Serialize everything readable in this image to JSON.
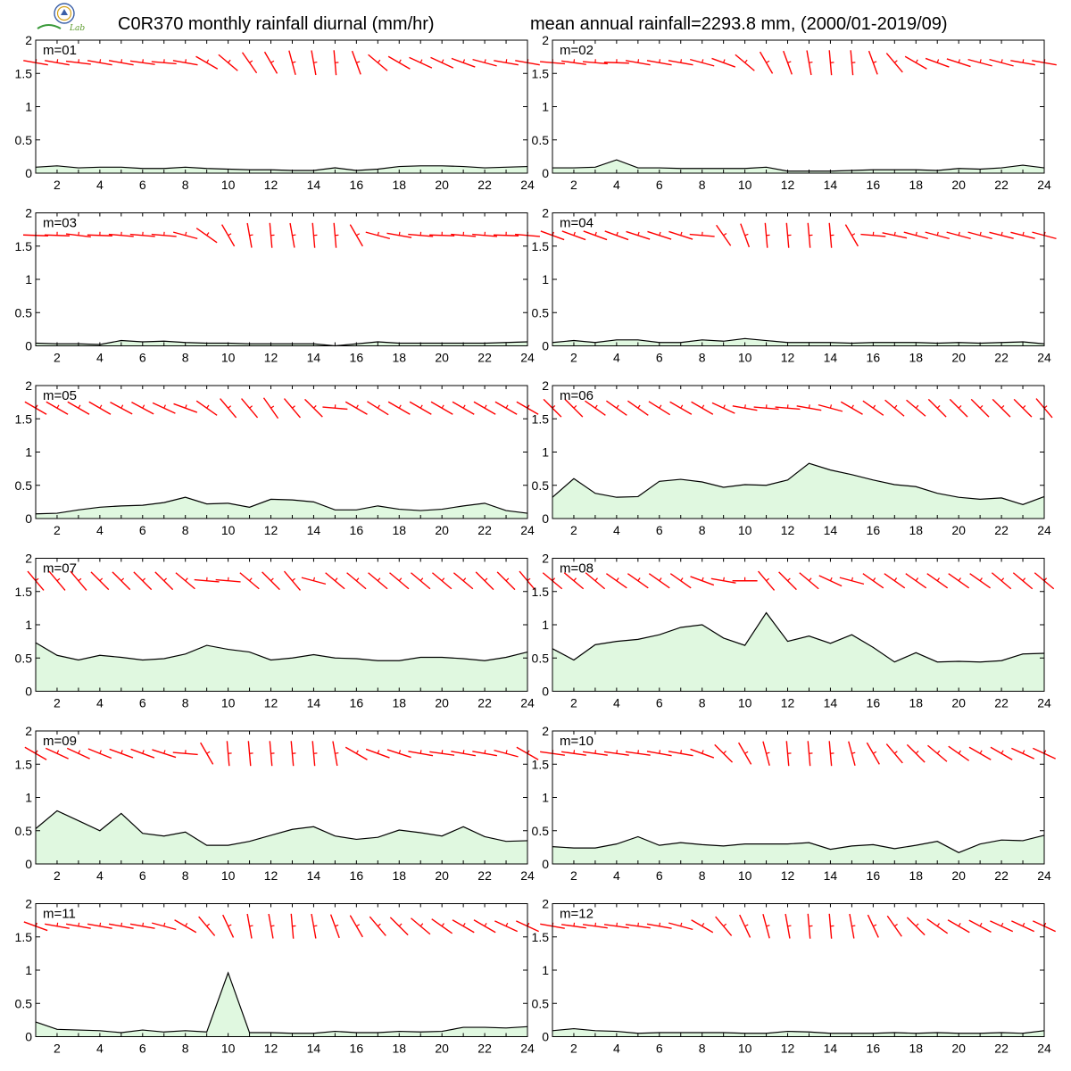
{
  "header": {
    "title_left": "C0R370 monthly rainfall diurnal (mm/hr)",
    "title_right": "mean annual rainfall=2293.8 mm, (2000/01-2019/09)",
    "logo_text": "Lab"
  },
  "colors": {
    "fill": "#e0f8e0",
    "line": "#000000",
    "barb": "#ff0000",
    "frame": "#000000"
  },
  "chart_data": [
    {
      "type": "area",
      "panel_label": "m=01",
      "x": [
        1,
        2,
        3,
        4,
        5,
        6,
        7,
        8,
        9,
        10,
        11,
        12,
        13,
        14,
        15,
        16,
        17,
        18,
        19,
        20,
        21,
        22,
        23,
        24
      ],
      "values": [
        0.09,
        0.11,
        0.08,
        0.09,
        0.09,
        0.07,
        0.07,
        0.09,
        0.07,
        0.06,
        0.05,
        0.05,
        0.04,
        0.04,
        0.08,
        0.04,
        0.06,
        0.1,
        0.11,
        0.11,
        0.1,
        0.08,
        0.09,
        0.1
      ],
      "wind_dir_deg": [
        80,
        80,
        83,
        80,
        80,
        82,
        85,
        80,
        60,
        50,
        35,
        30,
        15,
        10,
        5,
        20,
        50,
        60,
        65,
        65,
        70,
        75,
        80,
        80
      ],
      "xlim": [
        1,
        24
      ],
      "ylim": [
        0,
        2
      ],
      "xticks": [
        2,
        4,
        6,
        8,
        10,
        12,
        14,
        16,
        18,
        20,
        22,
        24
      ],
      "yticks": [
        0,
        0.5,
        1,
        1.5,
        2
      ]
    },
    {
      "type": "area",
      "panel_label": "m=02",
      "x": [
        1,
        2,
        3,
        4,
        5,
        6,
        7,
        8,
        9,
        10,
        11,
        12,
        13,
        14,
        15,
        16,
        17,
        18,
        19,
        20,
        21,
        22,
        23,
        24
      ],
      "values": [
        0.08,
        0.08,
        0.09,
        0.2,
        0.08,
        0.08,
        0.07,
        0.07,
        0.07,
        0.07,
        0.09,
        0.03,
        0.03,
        0.03,
        0.04,
        0.05,
        0.05,
        0.05,
        0.04,
        0.07,
        0.06,
        0.08,
        0.12,
        0.08
      ],
      "wind_dir_deg": [
        85,
        82,
        85,
        88,
        80,
        80,
        80,
        75,
        70,
        50,
        30,
        20,
        10,
        5,
        5,
        20,
        40,
        60,
        70,
        72,
        75,
        75,
        80,
        80
      ],
      "xlim": [
        1,
        24
      ],
      "ylim": [
        0,
        2
      ],
      "xticks": [
        2,
        4,
        6,
        8,
        10,
        12,
        14,
        16,
        18,
        20,
        22,
        24
      ],
      "yticks": [
        0,
        0.5,
        1,
        1.5,
        2
      ]
    },
    {
      "type": "area",
      "panel_label": "m=03",
      "x": [
        1,
        2,
        3,
        4,
        5,
        6,
        7,
        8,
        9,
        10,
        11,
        12,
        13,
        14,
        15,
        16,
        17,
        18,
        19,
        20,
        21,
        22,
        23,
        24
      ],
      "values": [
        0.04,
        0.03,
        0.03,
        0.02,
        0.08,
        0.06,
        0.07,
        0.05,
        0.04,
        0.04,
        0.03,
        0.03,
        0.03,
        0.03,
        0.0,
        0.03,
        0.06,
        0.04,
        0.04,
        0.04,
        0.04,
        0.04,
        0.05,
        0.06
      ],
      "wind_dir_deg": [
        88,
        88,
        83,
        88,
        85,
        85,
        85,
        75,
        55,
        30,
        10,
        5,
        10,
        5,
        5,
        30,
        75,
        80,
        85,
        88,
        85,
        85,
        88,
        85
      ],
      "xlim": [
        1,
        24
      ],
      "ylim": [
        0,
        2
      ],
      "xticks": [
        2,
        4,
        6,
        8,
        10,
        12,
        14,
        16,
        18,
        20,
        22,
        24
      ],
      "yticks": [
        0,
        0.5,
        1,
        1.5,
        2
      ]
    },
    {
      "type": "area",
      "panel_label": "m=04",
      "x": [
        1,
        2,
        3,
        4,
        5,
        6,
        7,
        8,
        9,
        10,
        11,
        12,
        13,
        14,
        15,
        16,
        17,
        18,
        19,
        20,
        21,
        22,
        23,
        24
      ],
      "values": [
        0.05,
        0.08,
        0.05,
        0.09,
        0.09,
        0.05,
        0.05,
        0.09,
        0.07,
        0.11,
        0.08,
        0.05,
        0.05,
        0.05,
        0.04,
        0.05,
        0.05,
        0.05,
        0.04,
        0.05,
        0.04,
        0.05,
        0.06,
        0.03
      ],
      "wind_dir_deg": [
        70,
        70,
        70,
        70,
        72,
        72,
        72,
        85,
        35,
        20,
        5,
        5,
        5,
        5,
        30,
        85,
        78,
        75,
        75,
        75,
        75,
        76,
        76,
        75
      ],
      "xlim": [
        1,
        24
      ],
      "ylim": [
        0,
        2
      ],
      "xticks": [
        2,
        4,
        6,
        8,
        10,
        12,
        14,
        16,
        18,
        20,
        22,
        24
      ],
      "yticks": [
        0,
        0.5,
        1,
        1.5,
        2
      ]
    },
    {
      "type": "area",
      "panel_label": "m=05",
      "x": [
        1,
        2,
        3,
        4,
        5,
        6,
        7,
        8,
        9,
        10,
        11,
        12,
        13,
        14,
        15,
        16,
        17,
        18,
        19,
        20,
        21,
        22,
        23,
        24
      ],
      "values": [
        0.07,
        0.08,
        0.13,
        0.17,
        0.19,
        0.2,
        0.24,
        0.32,
        0.22,
        0.23,
        0.17,
        0.29,
        0.28,
        0.25,
        0.13,
        0.13,
        0.19,
        0.14,
        0.12,
        0.14,
        0.19,
        0.23,
        0.12,
        0.08
      ],
      "wind_dir_deg": [
        60,
        60,
        60,
        60,
        62,
        62,
        65,
        70,
        55,
        40,
        40,
        35,
        40,
        45,
        85,
        60,
        58,
        60,
        60,
        60,
        60,
        60,
        60,
        60
      ],
      "xlim": [
        1,
        24
      ],
      "ylim": [
        0,
        2
      ],
      "xticks": [
        2,
        4,
        6,
        8,
        10,
        12,
        14,
        16,
        18,
        20,
        22,
        24
      ],
      "yticks": [
        0,
        0.5,
        1,
        1.5,
        2
      ]
    },
    {
      "type": "area",
      "panel_label": "m=06",
      "x": [
        1,
        2,
        3,
        4,
        5,
        6,
        7,
        8,
        9,
        10,
        11,
        12,
        13,
        14,
        15,
        16,
        17,
        18,
        19,
        20,
        21,
        22,
        23,
        24
      ],
      "values": [
        0.32,
        0.6,
        0.38,
        0.32,
        0.33,
        0.56,
        0.59,
        0.55,
        0.47,
        0.51,
        0.5,
        0.58,
        0.83,
        0.73,
        0.66,
        0.58,
        0.51,
        0.48,
        0.38,
        0.32,
        0.29,
        0.31,
        0.21,
        0.33
      ],
      "wind_dir_deg": [
        45,
        45,
        55,
        55,
        55,
        58,
        60,
        60,
        65,
        80,
        85,
        85,
        80,
        75,
        60,
        55,
        50,
        50,
        45,
        45,
        45,
        45,
        45,
        40
      ],
      "xlim": [
        1,
        24
      ],
      "ylim": [
        0,
        2
      ],
      "xticks": [
        2,
        4,
        6,
        8,
        10,
        12,
        14,
        16,
        18,
        20,
        22,
        24
      ],
      "yticks": [
        0,
        0.5,
        1,
        1.5,
        2
      ]
    },
    {
      "type": "area",
      "panel_label": "m=07",
      "x": [
        1,
        2,
        3,
        4,
        5,
        6,
        7,
        8,
        9,
        10,
        11,
        12,
        13,
        14,
        15,
        16,
        17,
        18,
        19,
        20,
        21,
        22,
        23,
        24
      ],
      "values": [
        0.73,
        0.54,
        0.47,
        0.54,
        0.51,
        0.47,
        0.49,
        0.56,
        0.69,
        0.63,
        0.59,
        0.47,
        0.5,
        0.55,
        0.5,
        0.49,
        0.46,
        0.46,
        0.51,
        0.51,
        0.49,
        0.46,
        0.51,
        0.59
      ],
      "wind_dir_deg": [
        40,
        40,
        40,
        45,
        45,
        45,
        45,
        50,
        85,
        85,
        50,
        45,
        40,
        75,
        50,
        50,
        50,
        50,
        50,
        50,
        50,
        45,
        45,
        40
      ],
      "xlim": [
        1,
        24
      ],
      "ylim": [
        0,
        2
      ],
      "xticks": [
        2,
        4,
        6,
        8,
        10,
        12,
        14,
        16,
        18,
        20,
        22,
        24
      ],
      "yticks": [
        0,
        0.5,
        1,
        1.5,
        2
      ]
    },
    {
      "type": "area",
      "panel_label": "m=08",
      "x": [
        1,
        2,
        3,
        4,
        5,
        6,
        7,
        8,
        9,
        10,
        11,
        12,
        13,
        14,
        15,
        16,
        17,
        18,
        19,
        20,
        21,
        22,
        23,
        24
      ],
      "values": [
        0.64,
        0.47,
        0.7,
        0.75,
        0.78,
        0.85,
        0.96,
        1.0,
        0.8,
        0.69,
        1.18,
        0.75,
        0.83,
        0.72,
        0.85,
        0.66,
        0.44,
        0.58,
        0.44,
        0.45,
        0.44,
        0.46,
        0.56,
        0.57
      ],
      "wind_dir_deg": [
        50,
        50,
        50,
        55,
        55,
        55,
        55,
        70,
        80,
        90,
        40,
        45,
        50,
        65,
        75,
        55,
        55,
        55,
        55,
        55,
        55,
        50,
        50,
        50
      ],
      "xlim": [
        1,
        24
      ],
      "ylim": [
        0,
        2
      ],
      "xticks": [
        2,
        4,
        6,
        8,
        10,
        12,
        14,
        16,
        18,
        20,
        22,
        24
      ],
      "yticks": [
        0,
        0.5,
        1,
        1.5,
        2
      ]
    },
    {
      "type": "area",
      "panel_label": "m=09",
      "x": [
        1,
        2,
        3,
        4,
        5,
        6,
        7,
        8,
        9,
        10,
        11,
        12,
        13,
        14,
        15,
        16,
        17,
        18,
        19,
        20,
        21,
        22,
        23,
        24
      ],
      "values": [
        0.53,
        0.8,
        0.65,
        0.5,
        0.76,
        0.46,
        0.42,
        0.48,
        0.28,
        0.28,
        0.34,
        0.43,
        0.52,
        0.56,
        0.42,
        0.37,
        0.4,
        0.51,
        0.47,
        0.42,
        0.56,
        0.41,
        0.34,
        0.35
      ],
      "wind_dir_deg": [
        60,
        65,
        65,
        68,
        70,
        70,
        72,
        85,
        30,
        5,
        5,
        5,
        5,
        5,
        10,
        60,
        70,
        72,
        80,
        82,
        80,
        80,
        75,
        60
      ],
      "xlim": [
        1,
        24
      ],
      "ylim": [
        0,
        2
      ],
      "xticks": [
        2,
        4,
        6,
        8,
        10,
        12,
        14,
        16,
        18,
        20,
        22,
        24
      ],
      "yticks": [
        0,
        0.5,
        1,
        1.5,
        2
      ]
    },
    {
      "type": "area",
      "panel_label": "m=10",
      "x": [
        1,
        2,
        3,
        4,
        5,
        6,
        7,
        8,
        9,
        10,
        11,
        12,
        13,
        14,
        15,
        16,
        17,
        18,
        19,
        20,
        21,
        22,
        23,
        24
      ],
      "values": [
        0.26,
        0.24,
        0.24,
        0.3,
        0.41,
        0.28,
        0.32,
        0.29,
        0.27,
        0.3,
        0.3,
        0.3,
        0.32,
        0.22,
        0.27,
        0.29,
        0.23,
        0.28,
        0.34,
        0.17,
        0.3,
        0.36,
        0.35,
        0.43
      ],
      "wind_dir_deg": [
        82,
        82,
        82,
        82,
        82,
        80,
        80,
        70,
        45,
        30,
        15,
        5,
        5,
        5,
        15,
        30,
        40,
        45,
        50,
        55,
        60,
        60,
        65,
        65
      ],
      "xlim": [
        1,
        24
      ],
      "ylim": [
        0,
        2
      ],
      "xticks": [
        2,
        4,
        6,
        8,
        10,
        12,
        14,
        16,
        18,
        20,
        22,
        24
      ],
      "yticks": [
        0,
        0.5,
        1,
        1.5,
        2
      ]
    },
    {
      "type": "area",
      "panel_label": "m=11",
      "x": [
        1,
        2,
        3,
        4,
        5,
        6,
        7,
        8,
        9,
        10,
        11,
        12,
        13,
        14,
        15,
        16,
        17,
        18,
        19,
        20,
        21,
        22,
        23,
        24
      ],
      "values": [
        0.22,
        0.11,
        0.1,
        0.09,
        0.06,
        0.1,
        0.07,
        0.09,
        0.07,
        0.96,
        0.06,
        0.06,
        0.05,
        0.05,
        0.08,
        0.06,
        0.06,
        0.08,
        0.07,
        0.08,
        0.14,
        0.14,
        0.13,
        0.15
      ],
      "wind_dir_deg": [
        70,
        80,
        80,
        80,
        80,
        80,
        75,
        60,
        40,
        25,
        10,
        10,
        5,
        10,
        20,
        30,
        40,
        45,
        50,
        55,
        60,
        60,
        65,
        65
      ],
      "xlim": [
        1,
        24
      ],
      "ylim": [
        0,
        2
      ],
      "xticks": [
        2,
        4,
        6,
        8,
        10,
        12,
        14,
        16,
        18,
        20,
        22,
        24
      ],
      "yticks": [
        0,
        0.5,
        1,
        1.5,
        2
      ]
    },
    {
      "type": "area",
      "panel_label": "m=12",
      "x": [
        1,
        2,
        3,
        4,
        5,
        6,
        7,
        8,
        9,
        10,
        11,
        12,
        13,
        14,
        15,
        16,
        17,
        18,
        19,
        20,
        21,
        22,
        23,
        24
      ],
      "values": [
        0.09,
        0.12,
        0.09,
        0.08,
        0.05,
        0.06,
        0.06,
        0.06,
        0.06,
        0.05,
        0.05,
        0.08,
        0.07,
        0.05,
        0.05,
        0.05,
        0.06,
        0.05,
        0.06,
        0.05,
        0.05,
        0.06,
        0.05,
        0.09
      ],
      "wind_dir_deg": [
        80,
        82,
        82,
        82,
        82,
        80,
        75,
        60,
        40,
        25,
        15,
        10,
        5,
        5,
        10,
        25,
        35,
        45,
        55,
        60,
        62,
        65,
        65,
        65
      ],
      "xlim": [
        1,
        24
      ],
      "ylim": [
        0,
        2
      ],
      "xticks": [
        2,
        4,
        6,
        8,
        10,
        12,
        14,
        16,
        18,
        20,
        22,
        24
      ],
      "yticks": [
        0,
        0.5,
        1,
        1.5,
        2
      ]
    }
  ]
}
